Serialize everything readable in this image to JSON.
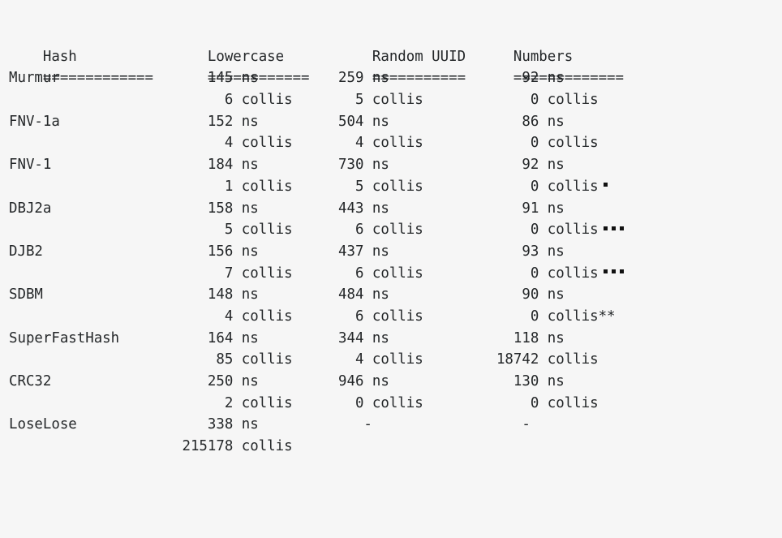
{
  "headers": [
    "Hash",
    "Lowercase",
    "Random UUID",
    "Numbers"
  ],
  "separators": [
    "=============",
    "============",
    "===========",
    "============="
  ],
  "rows": [
    {
      "name": "Murmur",
      "ns": [
        "145",
        "259",
        "92"
      ],
      "collis": [
        "6",
        "5",
        "0"
      ],
      "note": ""
    },
    {
      "name": "FNV-1a",
      "ns": [
        "152",
        "504",
        "86"
      ],
      "collis": [
        "4",
        "4",
        "0"
      ],
      "note": ""
    },
    {
      "name": "FNV-1",
      "ns": [
        "184",
        "730",
        "92"
      ],
      "collis": [
        "1",
        "5",
        "0"
      ],
      "note": "",
      "markers": 1
    },
    {
      "name": "DBJ2a",
      "ns": [
        "158",
        "443",
        "91"
      ],
      "collis": [
        "5",
        "6",
        "0"
      ],
      "note": "",
      "markers": 3
    },
    {
      "name": "DJB2",
      "ns": [
        "156",
        "437",
        "93"
      ],
      "collis": [
        "7",
        "6",
        "0"
      ],
      "note": "",
      "markers": 3
    },
    {
      "name": "SDBM",
      "ns": [
        "148",
        "484",
        "90"
      ],
      "collis": [
        "4",
        "6",
        "0"
      ],
      "note": "**"
    },
    {
      "name": "SuperFastHash",
      "ns": [
        "164",
        "344",
        "118"
      ],
      "collis": [
        "85",
        "4",
        "18742"
      ],
      "note": ""
    },
    {
      "name": "CRC32",
      "ns": [
        "250",
        "946",
        "130"
      ],
      "collis": [
        "2",
        "0",
        "0"
      ],
      "note": ""
    },
    {
      "name": "LoseLose",
      "ns": [
        "338",
        "-",
        "-"
      ],
      "collis": [
        "215178",
        "",
        ""
      ],
      "note": ""
    }
  ],
  "units": {
    "ns": "ns",
    "collis": "collis"
  }
}
